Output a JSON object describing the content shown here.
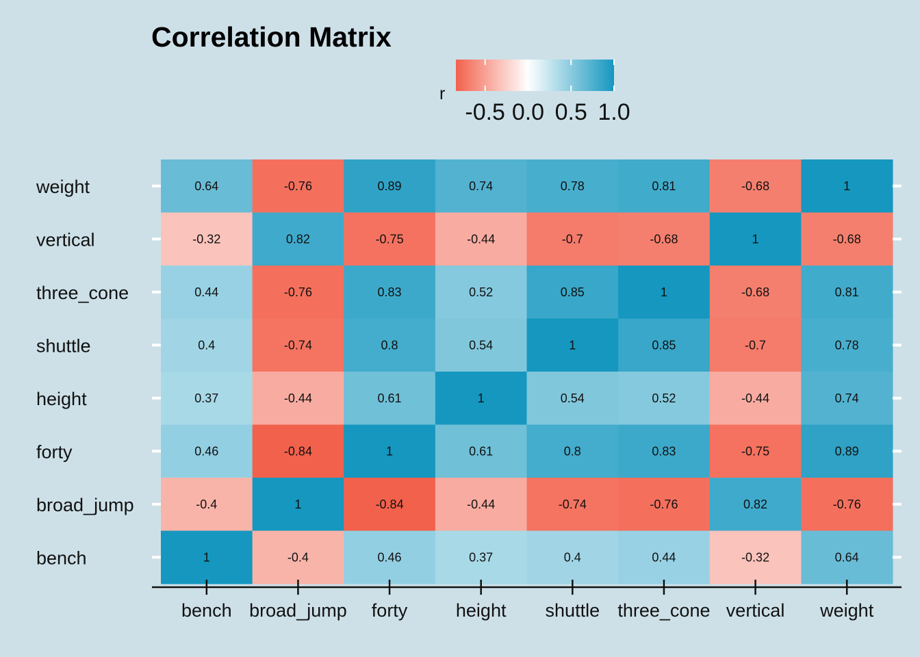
{
  "chart_data": {
    "type": "heatmap",
    "title": "Correlation Matrix",
    "variables": [
      "bench",
      "broad_jump",
      "forty",
      "height",
      "shuttle",
      "three_cone",
      "vertical",
      "weight"
    ],
    "x_categories": [
      "bench",
      "broad_jump",
      "forty",
      "height",
      "shuttle",
      "three_cone",
      "vertical",
      "weight"
    ],
    "y_categories_top_to_bottom": [
      "weight",
      "vertical",
      "three_cone",
      "shuttle",
      "height",
      "forty",
      "broad_jump",
      "bench"
    ],
    "matrix": [
      [
        1,
        -0.4,
        0.46,
        0.37,
        0.4,
        0.44,
        -0.32,
        0.64
      ],
      [
        -0.4,
        1,
        -0.84,
        -0.44,
        -0.74,
        -0.76,
        0.82,
        -0.76
      ],
      [
        0.46,
        -0.84,
        1,
        0.61,
        0.8,
        0.83,
        -0.75,
        0.89
      ],
      [
        0.37,
        -0.44,
        0.61,
        1,
        0.54,
        0.52,
        -0.44,
        0.74
      ],
      [
        0.4,
        -0.74,
        0.8,
        0.54,
        1,
        0.85,
        -0.7,
        0.78
      ],
      [
        0.44,
        -0.76,
        0.83,
        0.52,
        0.85,
        1,
        -0.68,
        0.81
      ],
      [
        -0.32,
        0.82,
        -0.75,
        -0.44,
        -0.7,
        -0.68,
        1,
        -0.68
      ],
      [
        0.64,
        -0.76,
        0.89,
        0.74,
        0.78,
        0.81,
        -0.68,
        1
      ]
    ],
    "cell_labels": [
      [
        "1",
        "-0.4",
        "0.46",
        "0.37",
        "0.4",
        "0.44",
        "-0.32",
        "0.64"
      ],
      [
        "-0.4",
        "1",
        "-0.84",
        "-0.44",
        "-0.74",
        "-0.76",
        "0.82",
        "-0.76"
      ],
      [
        "0.46",
        "-0.84",
        "1",
        "0.61",
        "0.8",
        "0.83",
        "-0.75",
        "0.89"
      ],
      [
        "0.37",
        "-0.44",
        "0.61",
        "1",
        "0.54",
        "0.52",
        "-0.44",
        "0.74"
      ],
      [
        "0.4",
        "-0.74",
        "0.8",
        "0.54",
        "1",
        "0.85",
        "-0.7",
        "0.78"
      ],
      [
        "0.44",
        "-0.76",
        "0.83",
        "0.52",
        "0.85",
        "1",
        "-0.68",
        "0.81"
      ],
      [
        "-0.32",
        "0.82",
        "-0.75",
        "-0.44",
        "-0.7",
        "-0.68",
        "1",
        "-0.68"
      ],
      [
        "0.64",
        "-0.76",
        "0.89",
        "0.74",
        "0.78",
        "0.81",
        "-0.68",
        "1"
      ]
    ],
    "legend": {
      "title": "r",
      "position": "top",
      "range": [
        -0.84,
        1
      ],
      "ticks": [
        -0.5,
        0.0,
        0.5,
        1.0
      ],
      "tick_labels": [
        "-0.5",
        "0.0",
        "0.5",
        "1.0"
      ]
    },
    "colors": {
      "negative": "#f0432a",
      "midpoint": "#ffffff",
      "positive": "#1597bf",
      "background": "#cde0e8"
    },
    "grid": false
  }
}
